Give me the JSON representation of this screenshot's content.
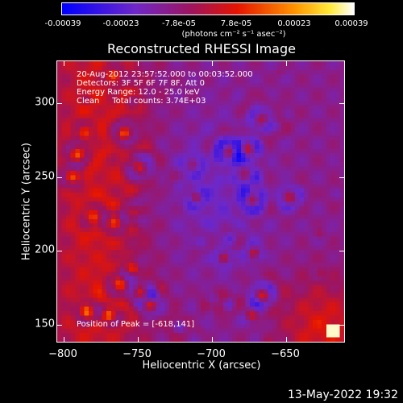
{
  "colorbar": {
    "tick_labels": [
      "-0.00039",
      "-0.00023",
      "-7.8e-05",
      "7.8e-05",
      "0.00023",
      "0.00039"
    ],
    "unit_label": "(photons cm⁻² s⁻¹ asec⁻²)"
  },
  "chart_data": {
    "type": "heatmap",
    "title": "Reconstructed RHESSI Image",
    "xlabel": "Heliocentric X (arcsec)",
    "ylabel": "Heliocentric Y (arcsec)",
    "x_ticks": [
      "−800",
      "−750",
      "−700",
      "−650"
    ],
    "y_ticks": [
      "150",
      "200",
      "250",
      "300"
    ],
    "xlim": [
      -804,
      -610
    ],
    "ylim": [
      136,
      327
    ],
    "color_range": [
      -0.00039,
      0.00039
    ],
    "colormap": "blue-purple-red-orange-yellow-white",
    "peak": [
      -618,
      141
    ]
  },
  "info": {
    "line1": "20-Aug-2012 23:57:52.000 to 00:03:52.000",
    "line2": "Detectors: 3F 5F 6F 7F 8F, Att 0",
    "line3": "Energy Range: 12.0 - 25.0 keV",
    "line4": "Clean     Total counts: 3.74E+03",
    "peak_label": "Position of Peak = [-618,141]"
  },
  "timestamp": "13-May-2022 19:32"
}
